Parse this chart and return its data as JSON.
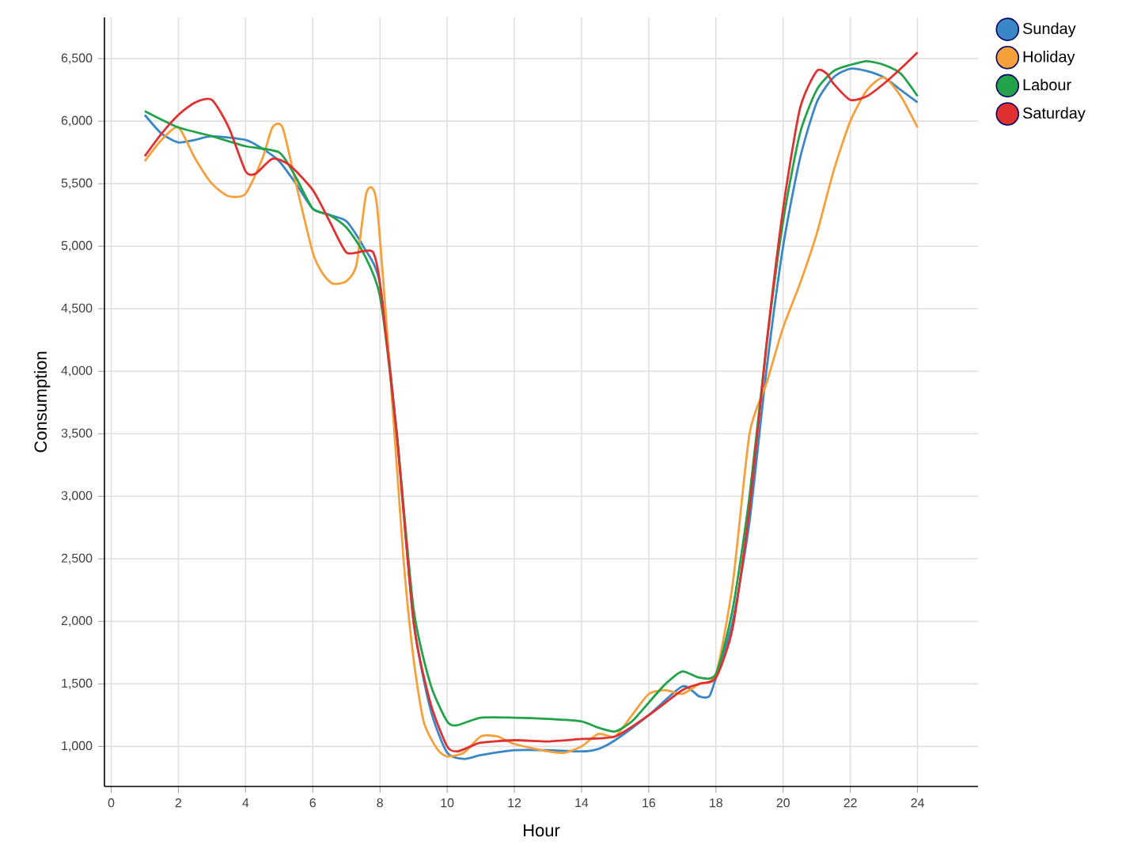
{
  "chart_data": {
    "type": "line",
    "xlabel": "Hour",
    "ylabel": "Consumption",
    "xlim": [
      -0.2,
      25.8
    ],
    "ylim": [
      680,
      6830
    ],
    "xticks": [
      0,
      2,
      4,
      6,
      8,
      10,
      12,
      14,
      16,
      18,
      20,
      22,
      24
    ],
    "yticks": [
      {
        "value": 1000,
        "label": "1,000"
      },
      {
        "value": 1500,
        "label": "1,500"
      },
      {
        "value": 2000,
        "label": "2,000"
      },
      {
        "value": 2500,
        "label": "2,500"
      },
      {
        "value": 3000,
        "label": "3,000"
      },
      {
        "value": 3500,
        "label": "3,500"
      },
      {
        "value": 4000,
        "label": "4,000"
      },
      {
        "value": 4500,
        "label": "4,500"
      },
      {
        "value": 5000,
        "label": "5,000"
      },
      {
        "value": 5500,
        "label": "5,500"
      },
      {
        "value": 6000,
        "label": "6,000"
      },
      {
        "value": 6500,
        "label": "6,500"
      }
    ],
    "grid": true,
    "legend": "top right",
    "marker": "none",
    "line_style": "solid",
    "series": [
      {
        "name": "Sunday",
        "color": "#3a87c8",
        "x": [
          1,
          1.5,
          2,
          2.5,
          3,
          4,
          4.5,
          5,
          5.5,
          6,
          6.5,
          7,
          7.5,
          8,
          8.5,
          9,
          9.5,
          10,
          10.5,
          11,
          12,
          13,
          14,
          14.5,
          15,
          16,
          17,
          17.5,
          17.8,
          18,
          18.5,
          19,
          19.5,
          20,
          20.5,
          21,
          21.5,
          22,
          22.5,
          23,
          23.5,
          24
        ],
        "values": [
          6050,
          5900,
          5830,
          5850,
          5880,
          5850,
          5780,
          5680,
          5500,
          5300,
          5250,
          5200,
          5000,
          4700,
          3500,
          2000,
          1300,
          950,
          900,
          930,
          970,
          970,
          960,
          980,
          1050,
          1250,
          1480,
          1400,
          1400,
          1550,
          2000,
          2800,
          4000,
          5000,
          5700,
          6150,
          6350,
          6420,
          6400,
          6350,
          6250,
          6150
        ]
      },
      {
        "name": "Holiday",
        "color": "#f5a03a",
        "x": [
          1,
          1.5,
          2,
          2.5,
          3,
          3.5,
          4,
          4.5,
          4.8,
          5.1,
          5.5,
          6,
          6.3,
          6.6,
          7,
          7.3,
          7.6,
          7.9,
          8.3,
          8.7,
          9,
          9.3,
          9.7,
          10,
          10.5,
          11,
          11.5,
          12,
          13,
          13.5,
          14,
          14.5,
          15,
          15.5,
          16,
          16.5,
          17,
          17.5,
          18,
          18.5,
          19,
          19.5,
          20,
          20.5,
          21,
          21.5,
          22,
          22.5,
          23,
          23.5,
          24
        ],
        "values": [
          5680,
          5850,
          5950,
          5700,
          5500,
          5400,
          5420,
          5700,
          5950,
          5950,
          5500,
          4950,
          4780,
          4700,
          4720,
          4850,
          5430,
          5350,
          4000,
          2500,
          1700,
          1200,
          980,
          920,
          950,
          1080,
          1080,
          1020,
          960,
          950,
          1000,
          1100,
          1080,
          1250,
          1420,
          1450,
          1420,
          1500,
          1580,
          2300,
          3500,
          3900,
          4350,
          4700,
          5100,
          5600,
          6000,
          6250,
          6350,
          6200,
          5950
        ]
      },
      {
        "name": "Labour",
        "color": "#22a34a",
        "x": [
          1,
          2,
          3,
          4,
          5,
          5.5,
          6,
          6.5,
          7,
          7.5,
          8,
          8.5,
          9,
          9.5,
          10,
          10.3,
          11,
          12,
          13,
          14,
          14.5,
          15,
          15.5,
          16,
          16.5,
          17,
          17.5,
          18,
          18.5,
          19,
          19.5,
          20,
          20.5,
          21,
          21.5,
          22,
          22.5,
          23,
          23.5,
          24
        ],
        "values": [
          6080,
          5950,
          5880,
          5800,
          5750,
          5550,
          5300,
          5250,
          5150,
          4950,
          4600,
          3500,
          2100,
          1500,
          1200,
          1170,
          1230,
          1230,
          1220,
          1200,
          1150,
          1120,
          1200,
          1350,
          1500,
          1600,
          1550,
          1580,
          2100,
          3000,
          4200,
          5200,
          5900,
          6250,
          6400,
          6450,
          6480,
          6450,
          6380,
          6200
        ]
      },
      {
        "name": "Saturday",
        "color": "#e03030",
        "x": [
          1,
          1.5,
          2,
          2.5,
          3,
          3.5,
          4,
          4.3,
          4.8,
          5.3,
          6,
          6.5,
          7,
          7.5,
          7.8,
          8,
          8.5,
          9,
          9.5,
          10,
          10.3,
          10.7,
          11,
          12,
          13,
          14,
          15,
          16,
          17,
          17.5,
          18,
          18.5,
          19,
          19.5,
          20,
          20.5,
          21,
          21.3,
          21.5,
          22,
          22.5,
          23,
          23.5,
          24
        ],
        "values": [
          5720,
          5900,
          6050,
          6150,
          6170,
          5950,
          5600,
          5580,
          5700,
          5650,
          5450,
          5200,
          4950,
          4960,
          4950,
          4700,
          3500,
          2000,
          1350,
          1000,
          960,
          1000,
          1030,
          1050,
          1040,
          1060,
          1080,
          1250,
          1450,
          1500,
          1550,
          1950,
          2900,
          4200,
          5300,
          6100,
          6400,
          6380,
          6300,
          6170,
          6200,
          6300,
          6420,
          6550
        ]
      }
    ]
  }
}
